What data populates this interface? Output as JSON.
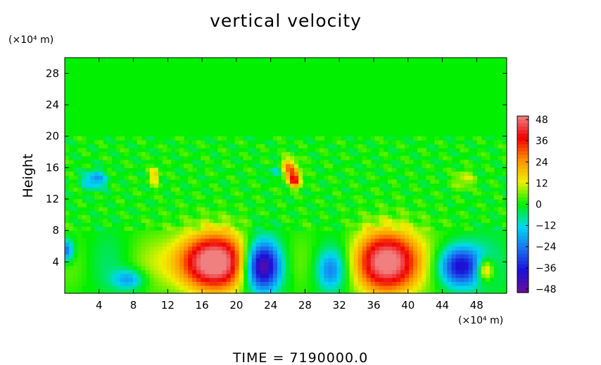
{
  "chart_data": {
    "type": "heatmap",
    "title": "vertical velocity",
    "ylabel": "Height",
    "y_unit_label": "(×10⁴ m)",
    "x_unit_label": "(×10⁴ m)",
    "xlim": [
      0,
      51.5
    ],
    "ylim": [
      0,
      30
    ],
    "x_ticks": [
      4,
      8,
      12,
      16,
      20,
      24,
      28,
      32,
      36,
      40,
      44,
      48
    ],
    "y_ticks": [
      4,
      8,
      12,
      16,
      20,
      24,
      28
    ],
    "colorbar": {
      "ticks": [
        48,
        36,
        24,
        12,
        0,
        -12,
        -24,
        -36,
        -48
      ],
      "labels": [
        "48",
        "36",
        "24",
        "12",
        "0",
        "−12",
        "−24",
        "−36",
        "−48"
      ],
      "range": [
        -50,
        50
      ],
      "colors": [
        "#6a0d9a",
        "#1a10d8",
        "#1a73f0",
        "#00d8f0",
        "#00f000",
        "#f0f000",
        "#ff9000",
        "#f00000",
        "#f08080"
      ]
    },
    "features": [
      {
        "x": 17.0,
        "y": 4.0,
        "sx": 3.2,
        "sy": 2.6,
        "value": 55
      },
      {
        "x": 38.0,
        "y": 4.0,
        "sx": 3.0,
        "sy": 2.8,
        "value": 52
      },
      {
        "x": 23.0,
        "y": 3.5,
        "sx": 1.5,
        "sy": 2.2,
        "value": -50
      },
      {
        "x": 46.0,
        "y": 3.5,
        "sx": 1.8,
        "sy": 1.9,
        "value": -45
      },
      {
        "x": 49.0,
        "y": 3.0,
        "sx": 0.7,
        "sy": 1.0,
        "value": 28
      },
      {
        "x": 31.0,
        "y": 3.0,
        "sx": 1.2,
        "sy": 1.8,
        "value": -22
      },
      {
        "x": 7.5,
        "y": 1.8,
        "sx": 1.3,
        "sy": 0.9,
        "value": -20
      },
      {
        "x": 0.2,
        "y": 5.5,
        "sx": 0.6,
        "sy": 1.0,
        "value": -28
      },
      {
        "x": 26.8,
        "y": 14.5,
        "sx": 0.5,
        "sy": 0.7,
        "value": 35
      },
      {
        "x": 26.2,
        "y": 16.0,
        "sx": 0.7,
        "sy": 0.9,
        "value": 25
      },
      {
        "x": 3.5,
        "y": 14.5,
        "sx": 0.9,
        "sy": 0.8,
        "value": -22
      },
      {
        "x": 10.5,
        "y": 15.0,
        "sx": 0.4,
        "sy": 0.8,
        "value": 18
      },
      {
        "x": 46.5,
        "y": 14.5,
        "sx": 0.8,
        "sy": 0.8,
        "value": 12
      },
      {
        "x": 24.5,
        "y": 15.5,
        "sx": 0.5,
        "sy": 0.6,
        "value": -12
      }
    ]
  },
  "footer": {
    "label": "TIME  =  7190000.0"
  }
}
